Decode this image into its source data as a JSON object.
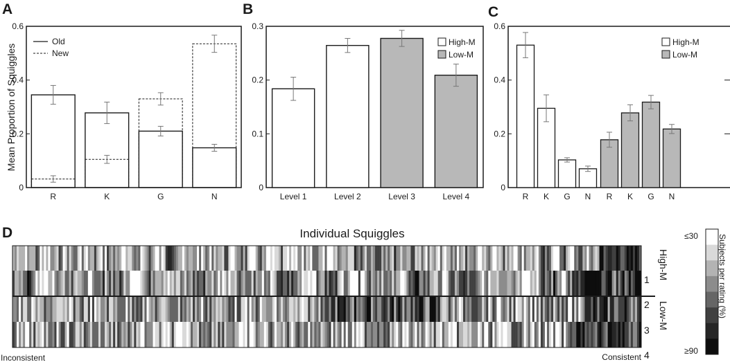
{
  "chart_data": [
    {
      "panel": "A",
      "type": "bar",
      "categories": [
        "R",
        "K",
        "G",
        "N"
      ],
      "ylabel": "Mean Proportion of Squiggles",
      "ylim": [
        0,
        0.6
      ],
      "yticks": [
        "0",
        "0.2",
        "0.4",
        "0.6"
      ],
      "legend_position": "top-left",
      "series": [
        {
          "name": "Old",
          "style": "solid",
          "values": [
            0.345,
            0.278,
            0.21,
            0.148
          ],
          "errors": [
            0.035,
            0.04,
            0.018,
            0.013
          ]
        },
        {
          "name": "New",
          "style": "dashed",
          "values": [
            0.032,
            0.105,
            0.33,
            0.535
          ],
          "errors": [
            0.012,
            0.015,
            0.023,
            0.032
          ]
        }
      ]
    },
    {
      "panel": "B",
      "type": "bar",
      "categories": [
        "Level 1",
        "Level 2",
        "Level 3",
        "Level 4"
      ],
      "values": [
        0.196,
        0.282,
        0.296,
        0.223
      ],
      "errors": [
        0.023,
        0.014,
        0.016,
        0.022
      ],
      "groups": [
        "High-M",
        "High-M",
        "Low-M",
        "Low-M"
      ],
      "ylim": [
        0,
        0.32
      ],
      "yticks": [
        "0",
        "0.1",
        "0.2",
        "0.3"
      ],
      "legend": [
        {
          "name": "High-M",
          "color": "#ffffff"
        },
        {
          "name": "Low-M",
          "color": "#b8b8b8"
        }
      ],
      "legend_position": "top-right"
    },
    {
      "panel": "C",
      "type": "bar",
      "categories": [
        "R",
        "K",
        "G",
        "N",
        "R",
        "K",
        "G",
        "N"
      ],
      "values": [
        0.53,
        0.295,
        0.103,
        0.07,
        0.178,
        0.278,
        0.318,
        0.218
      ],
      "errors": [
        0.047,
        0.05,
        0.008,
        0.01,
        0.028,
        0.03,
        0.025,
        0.017
      ],
      "groups": [
        "High-M",
        "High-M",
        "High-M",
        "High-M",
        "Low-M",
        "Low-M",
        "Low-M",
        "Low-M"
      ],
      "ylim": [
        0,
        0.6
      ],
      "yticks": [
        "0",
        "0.2",
        "0.4",
        "0.6"
      ],
      "legend": [
        {
          "name": "High-M",
          "color": "#ffffff"
        },
        {
          "name": "Low-M",
          "color": "#b8b8b8"
        }
      ],
      "legend_position": "top-right"
    },
    {
      "panel": "D",
      "type": "heatmap",
      "title": "Individual Squiggles",
      "rows": [
        "1",
        "2",
        "3",
        "4"
      ],
      "row_groups": [
        {
          "name": "High-M",
          "rows": [
            "1",
            "2"
          ]
        },
        {
          "name": "Low-M",
          "rows": [
            "3",
            "4"
          ]
        }
      ],
      "x_left_label": "Inconsistent",
      "x_right_label": "Consistent",
      "colorbar_label": "Subjects per rating (%)",
      "colorbar_min": "≤30",
      "colorbar_max": "≥90",
      "colorbar_colors": [
        "#ffffff",
        "#d9d9d9",
        "#b3b3b3",
        "#8c8c8c",
        "#666666",
        "#404040",
        "#262626",
        "#0d0d0d"
      ]
    }
  ],
  "colors": {
    "low_m_fill": "#b8b8b8",
    "high_m_fill": "#ffffff",
    "errorbar": "#777777",
    "axis": "#1a1a1a"
  }
}
